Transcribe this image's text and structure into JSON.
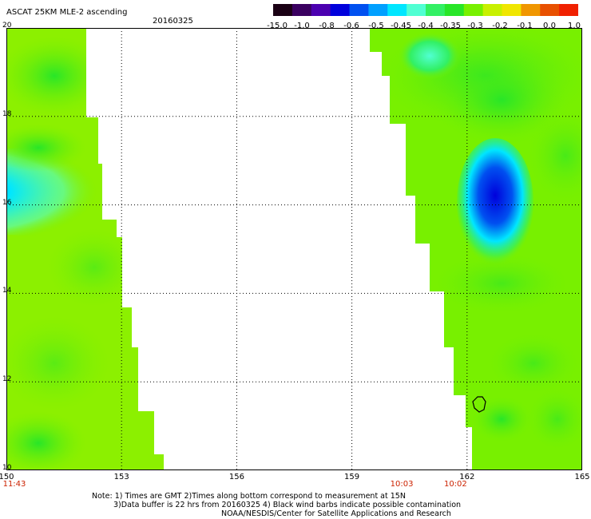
{
  "header": {
    "title": "ASCAT 25KM MLE-2 ascending",
    "date": "20160325"
  },
  "colorbar": {
    "colors": [
      "#1a0014",
      "#3a0060",
      "#4b00b0",
      "#0000dc",
      "#0050f0",
      "#00a0ff",
      "#00e6ff",
      "#50ffd2",
      "#32f064",
      "#28e628",
      "#78f000",
      "#c8f000",
      "#f0e600",
      "#f09600",
      "#e85000",
      "#f02000"
    ],
    "ticks": [
      "-15.0",
      "-1.0",
      "-0.8",
      "-0.6",
      "-0.5",
      "-0.45",
      "-0.4",
      "-0.35",
      "-0.3",
      "-0.2",
      "-0.1",
      "0.0",
      "1.0"
    ]
  },
  "map": {
    "lon_ticks": [
      "150",
      "153",
      "156",
      "159",
      "162",
      "165"
    ],
    "lat_ticks": [
      "20",
      "18",
      "16",
      "14",
      "12",
      "10"
    ],
    "time_labels": [
      {
        "lon": 150,
        "text": "11:43"
      },
      {
        "lon": 160.3,
        "text": "10:03"
      },
      {
        "lon": 161.7,
        "text": "10:02"
      }
    ],
    "lon_range": [
      150,
      165
    ],
    "lat_range": [
      10,
      20
    ],
    "colors": {
      "base_green": "#78f000",
      "light_green": "#a0f000",
      "green": "#3ce628",
      "cyan": "#00e6ff",
      "blue": "#0050f0",
      "deep_blue": "#0000dc"
    }
  },
  "notes": {
    "line1": "Note: 1) Times are GMT 2)Times along bottom correspond to measurement at 15N",
    "line2": "3)Data buffer is 22 hrs from 20160325 4) Black wind barbs indicate possible contamination",
    "line3": "NOAA/NESDIS/Center for Satellite Applications and Research"
  }
}
